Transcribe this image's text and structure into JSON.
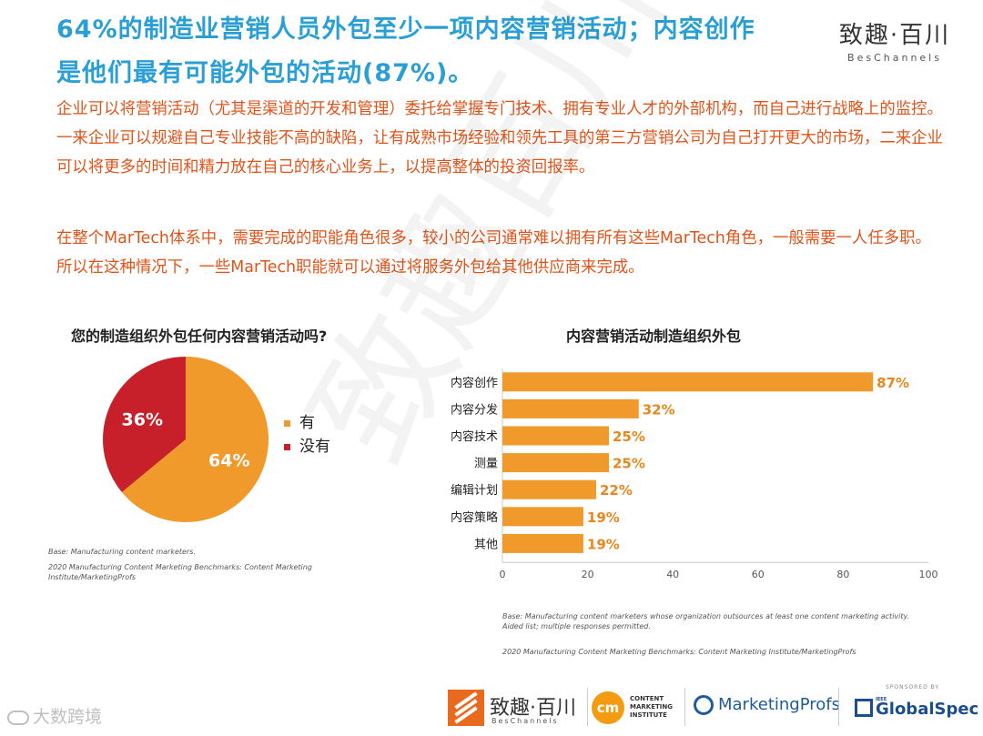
{
  "header": {
    "title_line1": "64%的制造业营销人员外包至少一项内容营销活动；内容创作",
    "title_line2": "是他们最有可能外包的活动(87%)。",
    "brand_cn": "致趣·百川",
    "brand_en": "BesChannels"
  },
  "intro": {
    "paragraph1": "企业可以将营销活动（尤其是渠道的开发和管理）委托给掌握专门技术、拥有专业人才的外部机构，而自己进行战略上的监控。一来企业可以规避自己专业技能不高的缺陷，让有成熟市场经验和领先工具的第三方营销公司为自己打开更大的市场，二来企业可以将更多的时间和精力放在自己的核心业务上，以提高整体的投资回报率。",
    "paragraph2": "在整个MarTech体系中，需要完成的职能角色很多，较小的公司通常难以拥有所有这些MarTech角色，一般需要一人任多职。所以在这种情况下，一些MarTech职能就可以通过将服务外包给其他供应商来完成。"
  },
  "watermark": "致趣百川",
  "chart_data": [
    {
      "type": "pie",
      "title": "您的制造组织外包任何内容营销活动吗?",
      "slices": [
        {
          "label": "有",
          "value": 64,
          "display": "64%",
          "color": "#ef9a2a"
        },
        {
          "label": "没有",
          "value": 36,
          "display": "36%",
          "color": "#c8202b"
        }
      ],
      "legend_position": "right",
      "base_note": "Base: Manufacturing content marketers.",
      "source": "2020 Manufacturing Content Marketing Benchmarks: Content Marketing Institute/MarketingProfs"
    },
    {
      "type": "bar",
      "orientation": "horizontal",
      "title": "内容营销活动制造组织外包",
      "categories": [
        "内容创作",
        "内容分发",
        "内容技术",
        "测量",
        "编辑计划",
        "内容策略",
        "其他"
      ],
      "values": [
        87,
        32,
        25,
        25,
        22,
        19,
        19
      ],
      "value_labels": [
        "87%",
        "32%",
        "25%",
        "25%",
        "22%",
        "19%",
        "19%"
      ],
      "bar_color": "#ef9a2a",
      "label_color": "#e8871e",
      "xlim": [
        0,
        100
      ],
      "xticks": [
        "0",
        "20",
        "40",
        "60",
        "80",
        "100"
      ],
      "grid": false,
      "base_note": "Base: Manufacturing content marketers whose organization outsources at least one content marketing activity. Aided list; multiple responses permitted.",
      "source": "2020 Manufacturing Content Marketing Benchmarks: Content Marketing Institute/MarketingProfs"
    }
  ],
  "footer": {
    "bes_cn": "致趣·百川",
    "bes_en": "BesChannels",
    "cmi_mark": "cm",
    "cmi_text": "CONTENT\nMARKETING\nINSTITUTE",
    "mp_text": "MarketingProfs",
    "gs_sponsored": "SPONSORED BY",
    "gs_ieee": "IEEE",
    "gs_text": "GlobalSpec",
    "bottom_left": "大数跨境"
  }
}
